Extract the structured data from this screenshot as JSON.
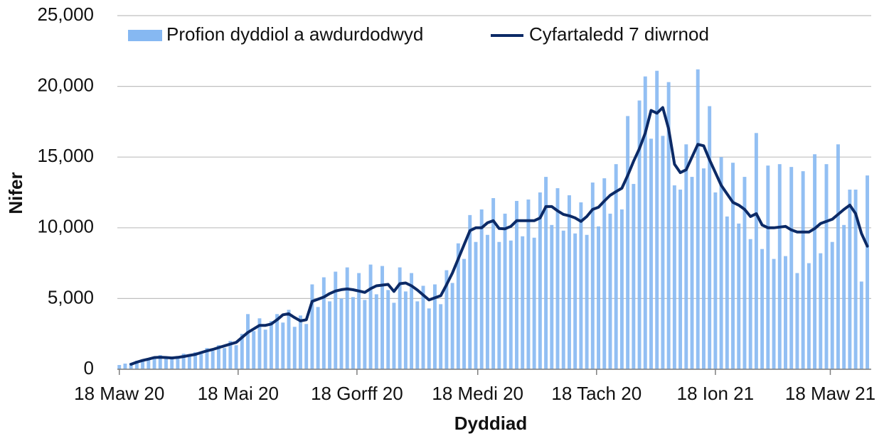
{
  "chart_data": {
    "type": "bar-line",
    "x_label": "Dyddiad",
    "y_label": "Nifer",
    "xlim": [
      -1,
      386
    ],
    "ylim": [
      0,
      25000
    ],
    "yticks": [
      0,
      {
        "value": 5000,
        "label": "5,000"
      },
      {
        "value": 10000,
        "label": "10,000"
      },
      {
        "value": 15000,
        "label": "15,000"
      },
      {
        "value": 20000,
        "label": "20,000"
      },
      {
        "value": 25000,
        "label": "25,000"
      }
    ],
    "xticks": [
      {
        "value": 0,
        "label": "18 Maw 20"
      },
      {
        "value": 61,
        "label": "18 Mai 20"
      },
      {
        "value": 122,
        "label": "18 Gorff 20"
      },
      {
        "value": 184,
        "label": "18 Medi 20"
      },
      {
        "value": 245,
        "label": "18 Tach 20"
      },
      {
        "value": 306,
        "label": "18 Ion 21"
      },
      {
        "value": 365,
        "label": "18 Maw 21"
      }
    ],
    "grid": true,
    "legend": "top",
    "x": [
      0,
      3,
      6,
      9,
      12,
      15,
      18,
      21,
      24,
      27,
      30,
      33,
      36,
      39,
      42,
      45,
      48,
      51,
      54,
      57,
      60,
      63,
      66,
      69,
      72,
      75,
      78,
      81,
      84,
      87,
      90,
      93,
      96,
      99,
      102,
      105,
      108,
      111,
      114,
      117,
      120,
      123,
      126,
      129,
      132,
      135,
      138,
      141,
      144,
      147,
      150,
      153,
      156,
      159,
      162,
      165,
      168,
      171,
      174,
      177,
      180,
      183,
      186,
      189,
      192,
      195,
      198,
      201,
      204,
      207,
      210,
      213,
      216,
      219,
      222,
      225,
      228,
      231,
      234,
      237,
      240,
      243,
      246,
      249,
      252,
      255,
      258,
      261,
      264,
      267,
      270,
      273,
      276,
      279,
      282,
      285,
      288,
      291,
      294,
      297,
      300,
      303,
      306,
      309,
      312,
      315,
      318,
      321,
      324,
      327,
      330,
      333,
      336,
      339,
      342,
      345,
      348,
      351,
      354,
      357,
      360,
      363,
      366,
      369,
      372,
      375,
      378,
      381,
      384
    ],
    "series": [
      {
        "name": "Profion dyddiol a awdurdodwyd",
        "kind": "bar",
        "color": "#86b8f2",
        "values": [
          300,
          400,
          450,
          600,
          700,
          650,
          900,
          1000,
          750,
          900,
          800,
          1100,
          900,
          1200,
          1100,
          1500,
          1300,
          1700,
          1500,
          2000,
          1700,
          2500,
          3900,
          2700,
          3600,
          2800,
          3400,
          3900,
          3300,
          4200,
          3000,
          3800,
          3200,
          6000,
          4400,
          6500,
          4800,
          6900,
          5000,
          7200,
          5100,
          6800,
          4900,
          7400,
          5300,
          7300,
          5600,
          4700,
          7200,
          5500,
          6800,
          4800,
          5900,
          4300,
          6000,
          4600,
          7000,
          6100,
          8900,
          7800,
          10900,
          9000,
          11300,
          9500,
          12100,
          9000,
          11000,
          9100,
          11900,
          9400,
          12000,
          9300,
          12500,
          13600,
          10200,
          12800,
          9800,
          12300,
          9600,
          11800,
          9500,
          13200,
          10100,
          13500,
          11000,
          14500,
          11300,
          17900,
          13100,
          19000,
          20700,
          16300,
          21100,
          16500,
          20300,
          13000,
          12700,
          15900,
          13600,
          21200,
          14200,
          18600,
          12500,
          15000,
          10800,
          14600,
          10300,
          13600,
          9200,
          16700,
          8500,
          14400,
          7800,
          14500,
          8000,
          14300,
          6800,
          14000,
          7500,
          15200,
          8200,
          14500,
          9000,
          15900,
          10200,
          12700,
          12700,
          6200,
          13700
        ]
      },
      {
        "name": "Cyfartaledd 7 diwrnod",
        "kind": "line",
        "color": "#0c2a66",
        "values": [
          null,
          null,
          350,
          500,
          620,
          720,
          830,
          850,
          830,
          800,
          840,
          900,
          980,
          1050,
          1180,
          1300,
          1400,
          1530,
          1650,
          1780,
          1900,
          2250,
          2600,
          2850,
          3100,
          3100,
          3200,
          3500,
          3850,
          3920,
          3650,
          3420,
          3500,
          4800,
          4950,
          5100,
          5350,
          5530,
          5630,
          5680,
          5620,
          5530,
          5430,
          5700,
          5900,
          5950,
          6000,
          5500,
          6050,
          6100,
          5900,
          5600,
          5250,
          4900,
          5050,
          5200,
          5980,
          6800,
          7800,
          8800,
          9800,
          10000,
          10000,
          10350,
          10500,
          9950,
          9930,
          10100,
          10500,
          10500,
          10500,
          10500,
          10700,
          11500,
          11500,
          11200,
          10950,
          10850,
          10700,
          10450,
          10800,
          11300,
          11450,
          11900,
          12300,
          12560,
          12800,
          13700,
          14700,
          15600,
          16700,
          18300,
          18100,
          18500,
          17000,
          14500,
          13900,
          14100,
          15000,
          15900,
          15800,
          14800,
          13900,
          13000,
          12400,
          11800,
          11600,
          11300,
          10800,
          11000,
          10200,
          10000,
          10000,
          10050,
          10100,
          9850,
          9700,
          9700,
          9700,
          9950,
          10300,
          10450,
          10600,
          10950,
          11300,
          11600,
          11000,
          9600,
          8700
        ]
      }
    ]
  }
}
